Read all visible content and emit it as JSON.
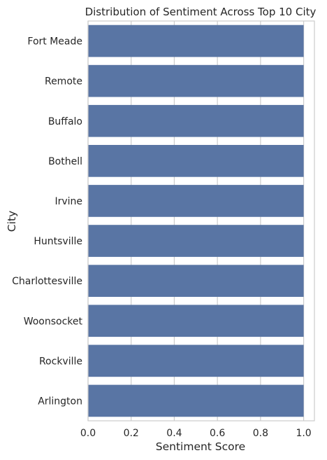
{
  "chart_data": {
    "type": "bar",
    "orientation": "horizontal",
    "title": "Distribution of Sentiment Across Top 10 City",
    "xlabel": "Sentiment Score",
    "ylabel": "City",
    "categories": [
      "Fort Meade",
      "Remote",
      "Buffalo",
      "Bothell",
      "Irvine",
      "Huntsville",
      "Charlottesville",
      "Woonsocket",
      "Rockville",
      "Arlington"
    ],
    "values": [
      1.0,
      1.0,
      1.0,
      1.0,
      1.0,
      1.0,
      1.0,
      1.0,
      1.0,
      1.0
    ],
    "xlim": [
      0.0,
      1.05
    ],
    "xticks": [
      0.0,
      0.2,
      0.4,
      0.6,
      0.8,
      1.0
    ],
    "xtick_labels": [
      "0.0",
      "0.2",
      "0.4",
      "0.6",
      "0.8",
      "1.0"
    ],
    "grid": "vertical",
    "legend": "none",
    "bar_color": "#5975a4",
    "grid_color": "#cccccc",
    "axis_color": "#cccccc"
  }
}
